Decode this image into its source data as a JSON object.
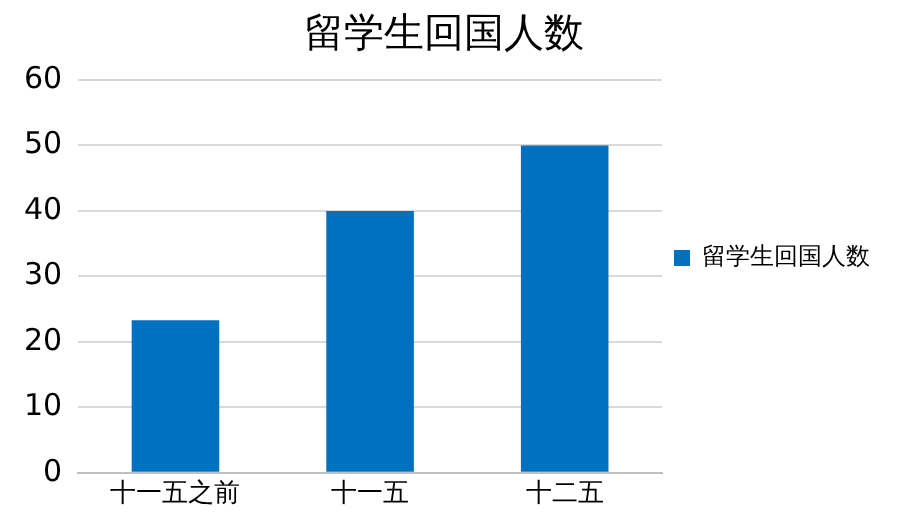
{
  "chart_data": {
    "type": "bar",
    "title": "留学生回国人数",
    "categories": [
      "十一五之前",
      "十一五",
      "十二五"
    ],
    "series": [
      {
        "name": "留学生回国人数",
        "color": "#0070c0",
        "values": [
          23.3,
          40,
          50
        ]
      }
    ],
    "ylim": [
      0,
      60
    ],
    "yticks": [
      0,
      10,
      20,
      30,
      40,
      50,
      60
    ],
    "grid": "y",
    "legend": "right"
  }
}
